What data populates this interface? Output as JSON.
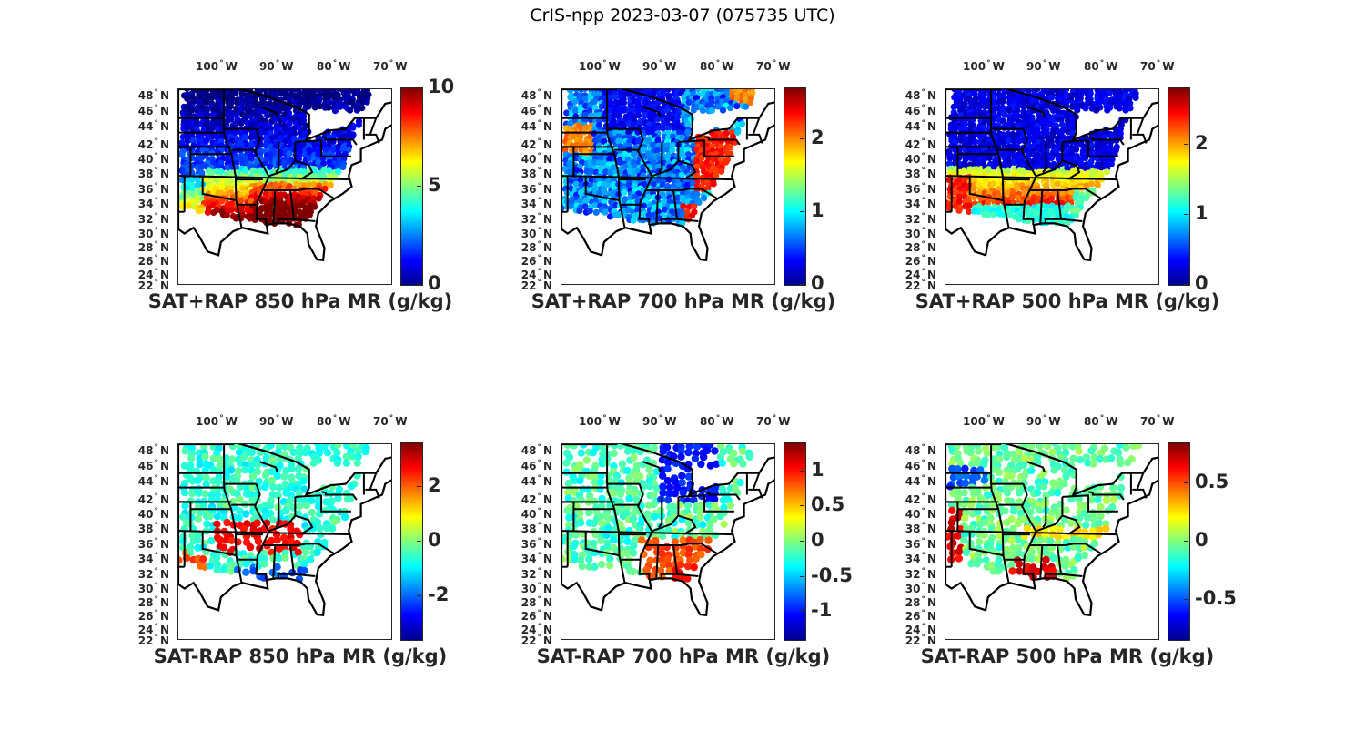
{
  "figure": {
    "suptitle": "CrIS-npp 2023-03-07 (075735 UTC)"
  },
  "axes": {
    "lon_ticks": [
      "100",
      "90",
      "80",
      "70"
    ],
    "lon_suffix": "W",
    "lat_ticks": [
      "48",
      "46",
      "44",
      "42",
      "40",
      "38",
      "36",
      "34",
      "32",
      "30",
      "28",
      "26",
      "24",
      "22"
    ],
    "lat_suffix": "N",
    "degree_symbol": "°"
  },
  "chart_data": [
    {
      "type": "heatmap",
      "title": "SAT+RAP 850 hPa MR (g/kg)",
      "colormap": "jet",
      "clim": [
        0,
        10
      ],
      "colorbar_ticks": [
        {
          "value": 0,
          "label": "0"
        },
        {
          "value": 5,
          "label": "5"
        },
        {
          "value": 10,
          "label": "10"
        }
      ],
      "lon_range": [
        -104,
        -69
      ],
      "lat_range": [
        22,
        49
      ],
      "pattern": "low values (0-2) in north, high values (8-10) in southeast Gulf states"
    },
    {
      "type": "heatmap",
      "title": "SAT+RAP 700 hPa MR (g/kg)",
      "colormap": "jet",
      "clim": [
        0,
        2.7
      ],
      "colorbar_ticks": [
        {
          "value": 0,
          "label": "0"
        },
        {
          "value": 1,
          "label": "1"
        },
        {
          "value": 2,
          "label": "2"
        }
      ],
      "lon_range": [
        -104,
        -69
      ],
      "lat_range": [
        22,
        49
      ],
      "pattern": "mostly low (0-1) with high (2-2.7) patches in Nebraska, Appalachians and Florida"
    },
    {
      "type": "heatmap",
      "title": "SAT+RAP 500 hPa MR (g/kg)",
      "colormap": "jet",
      "clim": [
        0,
        2.8
      ],
      "colorbar_ticks": [
        {
          "value": 0,
          "label": "0"
        },
        {
          "value": 1,
          "label": "1"
        },
        {
          "value": 2,
          "label": "2"
        }
      ],
      "lon_range": [
        -104,
        -69
      ],
      "lat_range": [
        22,
        49
      ],
      "pattern": "low (0-0.5) north, high (2-2.8) band along 33-37N"
    },
    {
      "type": "heatmap",
      "title": "SAT-RAP 850 hPa MR (g/kg)",
      "colormap": "jet",
      "clim": [
        -3.6,
        3.6
      ],
      "colorbar_ticks": [
        {
          "value": -2,
          "label": "-2"
        },
        {
          "value": 0,
          "label": "0"
        },
        {
          "value": 2,
          "label": "2"
        }
      ],
      "lon_range": [
        -104,
        -69
      ],
      "lat_range": [
        22,
        49
      ],
      "pattern": "near zero north, positive (+3) band 34-38N, negative (-2) along Gulf coast"
    },
    {
      "type": "heatmap",
      "title": "SAT-RAP 700 hPa MR (g/kg)",
      "colormap": "jet",
      "clim": [
        -1.4,
        1.4
      ],
      "colorbar_ticks": [
        {
          "value": -1,
          "label": "-1"
        },
        {
          "value": -0.5,
          "label": "-0.5"
        },
        {
          "value": 0,
          "label": "0"
        },
        {
          "value": 0.5,
          "label": "0.5"
        },
        {
          "value": 1,
          "label": "1"
        }
      ],
      "lon_range": [
        -104,
        -69
      ],
      "lat_range": [
        22,
        49
      ],
      "pattern": "near zero broadly, negative (-1) around Great Lakes, positive (+1) southeast"
    },
    {
      "type": "heatmap",
      "title": "SAT-RAP 500 hPa MR (g/kg)",
      "colormap": "jet",
      "clim": [
        -0.85,
        0.85
      ],
      "colorbar_ticks": [
        {
          "value": -0.5,
          "label": "-0.5"
        },
        {
          "value": 0,
          "label": "0"
        },
        {
          "value": 0.5,
          "label": "0.5"
        }
      ],
      "lon_range": [
        -104,
        -69
      ],
      "lat_range": [
        22,
        49
      ],
      "pattern": "near zero broadly, positive (+0.8) patches Colorado/Louisiana, negative (-0.5) South Dakota"
    }
  ]
}
